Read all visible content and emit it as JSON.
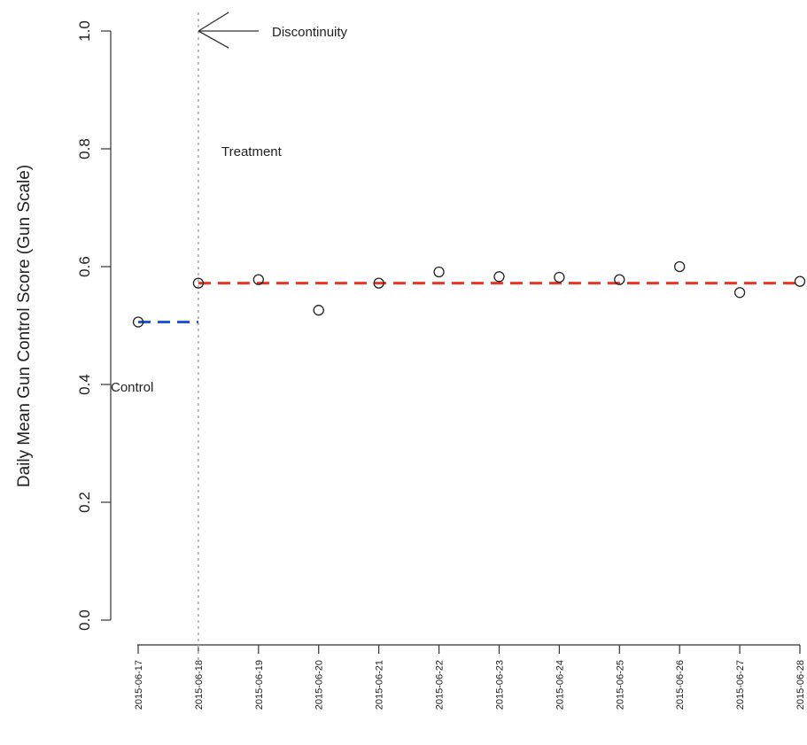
{
  "chart_data": {
    "type": "scatter",
    "ylabel": "Daily Mean Gun Control Score (Gun Scale)",
    "xlabel": "",
    "ylim": [
      0,
      1
    ],
    "yticks": [
      "0.0",
      "0.2",
      "0.4",
      "0.6",
      "0.8",
      "1.0"
    ],
    "categories": [
      "2015-06-17",
      "2015-06-18",
      "2015-06-19",
      "2015-06-20",
      "2015-06-21",
      "2015-06-22",
      "2015-06-23",
      "2015-06-24",
      "2015-06-25",
      "2015-06-26",
      "2015-06-27",
      "2015-06-28"
    ],
    "values": [
      0.506,
      0.572,
      0.578,
      0.526,
      0.572,
      0.591,
      0.583,
      0.582,
      0.578,
      0.6,
      0.556,
      0.575
    ],
    "discontinuity_date": "2015-06-18",
    "control_mean": {
      "value": 0.506,
      "from": "2015-06-17",
      "to": "2015-06-18",
      "color": "#2255dd"
    },
    "treatment_mean": {
      "value": 0.572,
      "from": "2015-06-18",
      "to": "2015-06-28",
      "color": "#ee3322"
    },
    "annotations": {
      "discontinuity": "Discontinuity",
      "treatment": "Treatment",
      "control": "Control"
    }
  }
}
